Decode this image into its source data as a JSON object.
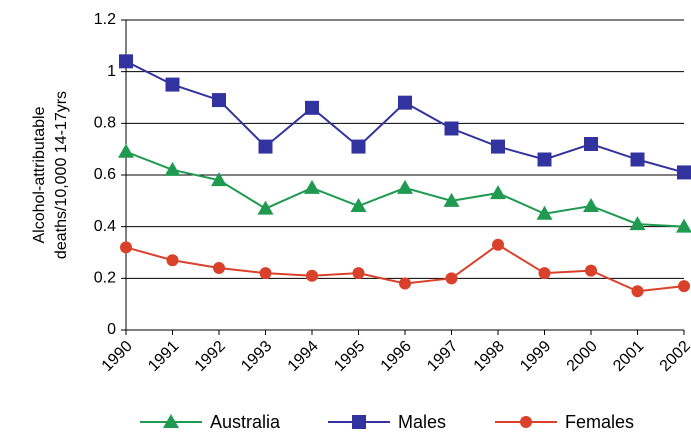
{
  "chart_data": {
    "type": "line",
    "y_label": [
      "Alcohol-attributable",
      "deaths/10,000 14-17yrs"
    ],
    "categories": [
      "1990",
      "1991",
      "1992",
      "1993",
      "1994",
      "1995",
      "1996",
      "1997",
      "1998",
      "1999",
      "2000",
      "2001",
      "2002"
    ],
    "series": [
      {
        "name": "Australia",
        "color": "#1f9a50",
        "marker": "triangle",
        "values": [
          0.69,
          0.62,
          0.58,
          0.47,
          0.55,
          0.48,
          0.55,
          0.5,
          0.53,
          0.45,
          0.48,
          0.41,
          0.4
        ]
      },
      {
        "name": "Males",
        "color": "#33339f",
        "marker": "square",
        "values": [
          1.04,
          0.95,
          0.89,
          0.71,
          0.86,
          0.71,
          0.88,
          0.78,
          0.71,
          0.66,
          0.72,
          0.66,
          0.61
        ]
      },
      {
        "name": "Females",
        "color": "#d9412b",
        "marker": "circle",
        "values": [
          0.32,
          0.27,
          0.24,
          0.22,
          0.21,
          0.22,
          0.18,
          0.2,
          0.33,
          0.22,
          0.23,
          0.15,
          0.17
        ]
      }
    ],
    "ylim": [
      0,
      1.2
    ],
    "yticks": [
      0,
      0.2,
      0.4,
      0.6,
      0.8,
      1,
      1.2
    ],
    "grid": true,
    "legend": "bottom"
  }
}
